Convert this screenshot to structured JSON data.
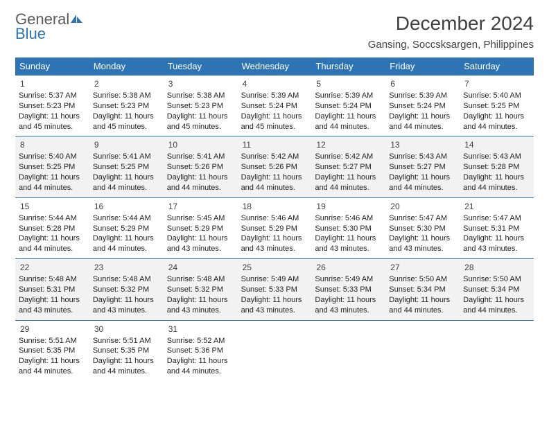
{
  "logo": {
    "word1": "General",
    "word2": "Blue"
  },
  "title": "December 2024",
  "location": "Gansing, Soccsksargen, Philippines",
  "colors": {
    "header_bg": "#2e74b5",
    "header_text": "#ffffff",
    "border": "#2e74b5",
    "shade_bg": "#f2f2f2",
    "text": "#404040",
    "logo_gray": "#5a5a5a",
    "logo_blue": "#2e74b5"
  },
  "day_headers": [
    "Sunday",
    "Monday",
    "Tuesday",
    "Wednesday",
    "Thursday",
    "Friday",
    "Saturday"
  ],
  "weeks": [
    {
      "shade": false,
      "days": [
        {
          "n": "1",
          "sr": "5:37 AM",
          "ss": "5:23 PM",
          "dl": "11 hours and 45 minutes."
        },
        {
          "n": "2",
          "sr": "5:38 AM",
          "ss": "5:23 PM",
          "dl": "11 hours and 45 minutes."
        },
        {
          "n": "3",
          "sr": "5:38 AM",
          "ss": "5:23 PM",
          "dl": "11 hours and 45 minutes."
        },
        {
          "n": "4",
          "sr": "5:39 AM",
          "ss": "5:24 PM",
          "dl": "11 hours and 45 minutes."
        },
        {
          "n": "5",
          "sr": "5:39 AM",
          "ss": "5:24 PM",
          "dl": "11 hours and 44 minutes."
        },
        {
          "n": "6",
          "sr": "5:39 AM",
          "ss": "5:24 PM",
          "dl": "11 hours and 44 minutes."
        },
        {
          "n": "7",
          "sr": "5:40 AM",
          "ss": "5:25 PM",
          "dl": "11 hours and 44 minutes."
        }
      ]
    },
    {
      "shade": true,
      "days": [
        {
          "n": "8",
          "sr": "5:40 AM",
          "ss": "5:25 PM",
          "dl": "11 hours and 44 minutes."
        },
        {
          "n": "9",
          "sr": "5:41 AM",
          "ss": "5:25 PM",
          "dl": "11 hours and 44 minutes."
        },
        {
          "n": "10",
          "sr": "5:41 AM",
          "ss": "5:26 PM",
          "dl": "11 hours and 44 minutes."
        },
        {
          "n": "11",
          "sr": "5:42 AM",
          "ss": "5:26 PM",
          "dl": "11 hours and 44 minutes."
        },
        {
          "n": "12",
          "sr": "5:42 AM",
          "ss": "5:27 PM",
          "dl": "11 hours and 44 minutes."
        },
        {
          "n": "13",
          "sr": "5:43 AM",
          "ss": "5:27 PM",
          "dl": "11 hours and 44 minutes."
        },
        {
          "n": "14",
          "sr": "5:43 AM",
          "ss": "5:28 PM",
          "dl": "11 hours and 44 minutes."
        }
      ]
    },
    {
      "shade": false,
      "days": [
        {
          "n": "15",
          "sr": "5:44 AM",
          "ss": "5:28 PM",
          "dl": "11 hours and 44 minutes."
        },
        {
          "n": "16",
          "sr": "5:44 AM",
          "ss": "5:29 PM",
          "dl": "11 hours and 44 minutes."
        },
        {
          "n": "17",
          "sr": "5:45 AM",
          "ss": "5:29 PM",
          "dl": "11 hours and 43 minutes."
        },
        {
          "n": "18",
          "sr": "5:46 AM",
          "ss": "5:29 PM",
          "dl": "11 hours and 43 minutes."
        },
        {
          "n": "19",
          "sr": "5:46 AM",
          "ss": "5:30 PM",
          "dl": "11 hours and 43 minutes."
        },
        {
          "n": "20",
          "sr": "5:47 AM",
          "ss": "5:30 PM",
          "dl": "11 hours and 43 minutes."
        },
        {
          "n": "21",
          "sr": "5:47 AM",
          "ss": "5:31 PM",
          "dl": "11 hours and 43 minutes."
        }
      ]
    },
    {
      "shade": true,
      "days": [
        {
          "n": "22",
          "sr": "5:48 AM",
          "ss": "5:31 PM",
          "dl": "11 hours and 43 minutes."
        },
        {
          "n": "23",
          "sr": "5:48 AM",
          "ss": "5:32 PM",
          "dl": "11 hours and 43 minutes."
        },
        {
          "n": "24",
          "sr": "5:48 AM",
          "ss": "5:32 PM",
          "dl": "11 hours and 43 minutes."
        },
        {
          "n": "25",
          "sr": "5:49 AM",
          "ss": "5:33 PM",
          "dl": "11 hours and 43 minutes."
        },
        {
          "n": "26",
          "sr": "5:49 AM",
          "ss": "5:33 PM",
          "dl": "11 hours and 43 minutes."
        },
        {
          "n": "27",
          "sr": "5:50 AM",
          "ss": "5:34 PM",
          "dl": "11 hours and 44 minutes."
        },
        {
          "n": "28",
          "sr": "5:50 AM",
          "ss": "5:34 PM",
          "dl": "11 hours and 44 minutes."
        }
      ]
    },
    {
      "shade": false,
      "days": [
        {
          "n": "29",
          "sr": "5:51 AM",
          "ss": "5:35 PM",
          "dl": "11 hours and 44 minutes."
        },
        {
          "n": "30",
          "sr": "5:51 AM",
          "ss": "5:35 PM",
          "dl": "11 hours and 44 minutes."
        },
        {
          "n": "31",
          "sr": "5:52 AM",
          "ss": "5:36 PM",
          "dl": "11 hours and 44 minutes."
        },
        null,
        null,
        null,
        null
      ]
    }
  ],
  "labels": {
    "sunrise": "Sunrise:",
    "sunset": "Sunset:",
    "daylight": "Daylight:"
  }
}
